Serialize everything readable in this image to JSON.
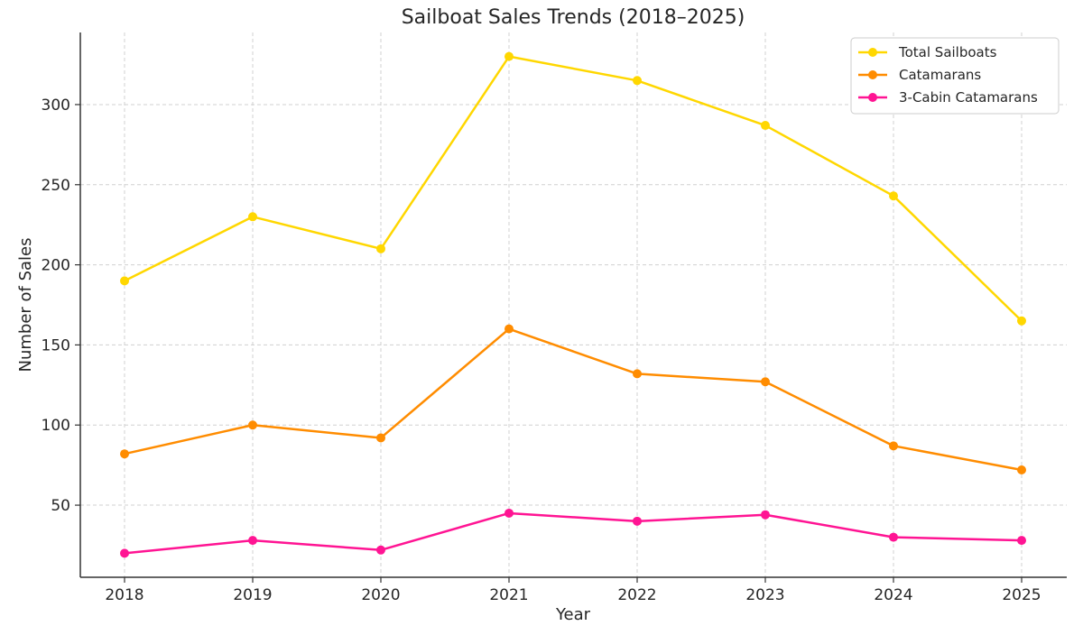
{
  "chart_data": {
    "type": "line",
    "title": "Sailboat Sales Trends (2018–2025)",
    "xlabel": "Year",
    "ylabel": "Number of Sales",
    "x": [
      "2018",
      "2019",
      "2020",
      "2021",
      "2022",
      "2023",
      "2024",
      "2025"
    ],
    "ylim": [
      5,
      345
    ],
    "yticks": [
      50,
      100,
      150,
      200,
      250,
      300
    ],
    "grid": true,
    "legend_position": "top-right",
    "series": [
      {
        "name": "Total Sailboats",
        "color": "#ffd700",
        "values": [
          190,
          230,
          210,
          330,
          315,
          287,
          243,
          165
        ]
      },
      {
        "name": "Catamarans",
        "color": "#ff8c00",
        "values": [
          82,
          100,
          92,
          160,
          132,
          127,
          87,
          72
        ]
      },
      {
        "name": "3-Cabin Catamarans",
        "color": "#ff1493",
        "values": [
          20,
          28,
          22,
          45,
          40,
          44,
          30,
          28
        ]
      }
    ]
  }
}
